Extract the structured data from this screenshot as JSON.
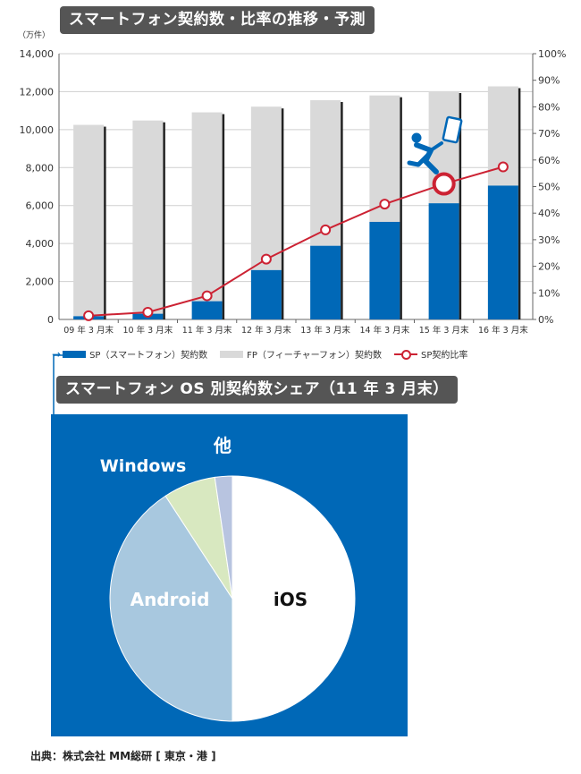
{
  "title": "スマートフォン契約数・比率の推移・予測",
  "pie_title": "スマートフォン OS 別契約数シェア（11 年 3 月末）",
  "source": "出典：株式会社 MM総研 [ 東京・港 ]",
  "legend": {
    "sp": "SP（スマートフォン）契約数",
    "fp": "FP（フィーチャーフォン）契約数",
    "ratio": "SP契約比率"
  },
  "colors": {
    "sp": "#0068b7",
    "fp": "#d9d9d9",
    "ratio": "#cc2233",
    "pie_ios": "#ffffff",
    "pie_android": "#a8c8df",
    "pie_windows": "#d8e8c0",
    "pie_other": "#b8c4e0",
    "pie_bg": "#0068b7",
    "banner": "#555555"
  },
  "chart_data": [
    {
      "type": "bar",
      "title": "スマートフォン契約数・比率の推移・予測",
      "y_unit": "（万件）",
      "categories": [
        "09 年 3 月末",
        "10 年 3 月末",
        "11 年 3 月末",
        "12 年 3 月末",
        "13 年 3 月末",
        "14 年 3 月末",
        "15 年 3 月末",
        "16 年 3 月末"
      ],
      "yticks": [
        "0",
        "2,000",
        "4,000",
        "6,000",
        "8,000",
        "10,000",
        "12,000",
        "14,000"
      ],
      "y2ticks": [
        "0%",
        "10%",
        "20%",
        "30%",
        "40%",
        "50%",
        "60%",
        "70%",
        "80%",
        "90%",
        "100%"
      ],
      "ylim": [
        0,
        14000
      ],
      "y2lim": [
        0,
        100
      ],
      "stacked": true,
      "series": [
        {
          "name": "SP（スマートフォン）契約数",
          "values": [
            170,
            300,
            960,
            2600,
            3880,
            5140,
            6120,
            7050
          ]
        },
        {
          "name": "FP（フィーチャーフォン）契約数",
          "values": [
            10080,
            10180,
            9950,
            8610,
            7670,
            6660,
            5900,
            5230
          ]
        },
        {
          "name": "SP契約比率",
          "axis": "right",
          "type": "line",
          "values": [
            1.4,
            2.7,
            8.9,
            22.7,
            33.7,
            43.4,
            51.0,
            57.4
          ]
        }
      ],
      "grid": "horizontal",
      "legend_position": "bottom"
    },
    {
      "type": "pie",
      "title": "スマートフォン OS 別契約数シェア（11 年 3 月末）",
      "slices": [
        {
          "label": "iOS",
          "value": 50
        },
        {
          "label": "Android",
          "value": 40.8
        },
        {
          "label": "Windows",
          "value": 6.9
        },
        {
          "label": "他",
          "value": 2.3
        }
      ]
    }
  ]
}
